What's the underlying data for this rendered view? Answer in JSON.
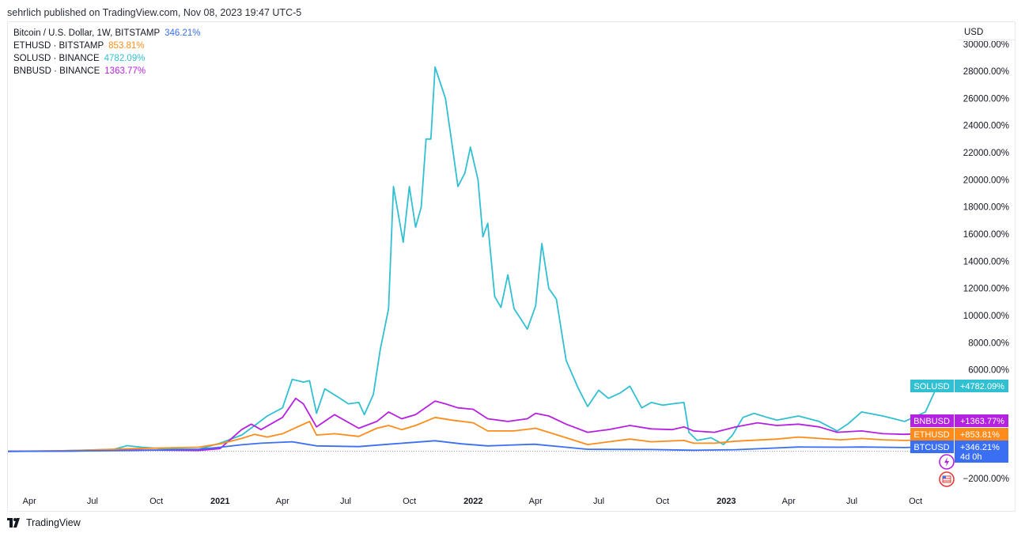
{
  "header": {
    "text": "sehrlich published on TradingView.com, Nov 08, 2023 19:47 UTC-5"
  },
  "footer": {
    "logo_text": "TradingView"
  },
  "usd_label": "USD",
  "colors": {
    "BTCUSD": "#3a6ff3",
    "ETHUSD": "#ff8c1a",
    "SOLUSD": "#31c0d1",
    "BNBUSD": "#b521e0"
  },
  "legend": [
    {
      "label": "Bitcoin / U.S. Dollar, 1W, BITSTAMP",
      "pct": "346.21%",
      "color": "#3a6ff3"
    },
    {
      "label": "ETHUSD · BITSTAMP",
      "pct": "853.81%",
      "color": "#ff8c1a"
    },
    {
      "label": "SOLUSD · BINANCE",
      "pct": "4782.09%",
      "color": "#31c0d1"
    },
    {
      "label": "BNBUSD · BINANCE",
      "pct": "1363.77%",
      "color": "#b521e0"
    }
  ],
  "chart_data": {
    "type": "line",
    "title": "",
    "y_unit": "%",
    "ylim": [
      -2600,
      29000
    ],
    "xlim": [
      "2020-03-01",
      "2023-11-08"
    ],
    "y_ticks": [
      {
        "value": 28000,
        "label": "28000.00%"
      },
      {
        "value": 26000,
        "label": "26000.00%"
      },
      {
        "value": 24000,
        "label": "24000.00%"
      },
      {
        "value": 22000,
        "label": "22000.00%"
      },
      {
        "value": 20000,
        "label": "20000.00%"
      },
      {
        "value": 18000,
        "label": "18000.00%"
      },
      {
        "value": 16000,
        "label": "16000.00%"
      },
      {
        "value": 14000,
        "label": "14000.00%"
      },
      {
        "value": 12000,
        "label": "12000.00%"
      },
      {
        "value": 10000,
        "label": "10000.00%"
      },
      {
        "value": 8000,
        "label": "8000.00%"
      },
      {
        "value": 6000,
        "label": "6000.00%"
      },
      {
        "value": -2000,
        "label": "−2000.00%"
      }
    ],
    "y_partial_top_label": "30000.00%",
    "x_ticks": [
      {
        "date": "2020-04-01",
        "label": "Apr",
        "year": false
      },
      {
        "date": "2020-07-01",
        "label": "Jul",
        "year": false
      },
      {
        "date": "2020-10-01",
        "label": "Oct",
        "year": false
      },
      {
        "date": "2021-01-01",
        "label": "2021",
        "year": true
      },
      {
        "date": "2021-04-01",
        "label": "Apr",
        "year": false
      },
      {
        "date": "2021-07-01",
        "label": "Jul",
        "year": false
      },
      {
        "date": "2021-10-01",
        "label": "Oct",
        "year": false
      },
      {
        "date": "2022-01-01",
        "label": "2022",
        "year": true
      },
      {
        "date": "2022-04-01",
        "label": "Apr",
        "year": false
      },
      {
        "date": "2022-07-01",
        "label": "Jul",
        "year": false
      },
      {
        "date": "2022-10-01",
        "label": "Oct",
        "year": false
      },
      {
        "date": "2023-01-01",
        "label": "2023",
        "year": true
      },
      {
        "date": "2023-04-01",
        "label": "Apr",
        "year": false
      },
      {
        "date": "2023-07-01",
        "label": "Jul",
        "year": false
      },
      {
        "date": "2023-10-01",
        "label": "Oct",
        "year": false
      }
    ],
    "series": [
      {
        "name": "SOLUSD",
        "color": "#31c0d1",
        "points": [
          [
            "2020-03-01",
            0
          ],
          [
            "2020-05-01",
            20
          ],
          [
            "2020-06-15",
            80
          ],
          [
            "2020-08-01",
            150
          ],
          [
            "2020-08-20",
            420
          ],
          [
            "2020-09-10",
            300
          ],
          [
            "2020-10-15",
            180
          ],
          [
            "2020-12-01",
            150
          ],
          [
            "2021-01-01",
            600
          ],
          [
            "2021-02-01",
            1200
          ],
          [
            "2021-02-20",
            1900
          ],
          [
            "2021-03-10",
            2600
          ],
          [
            "2021-04-01",
            3200
          ],
          [
            "2021-04-15",
            5300
          ],
          [
            "2021-05-01",
            5100
          ],
          [
            "2021-05-10",
            5200
          ],
          [
            "2021-05-20",
            2800
          ],
          [
            "2021-06-01",
            4600
          ],
          [
            "2021-06-20",
            4000
          ],
          [
            "2021-07-05",
            3500
          ],
          [
            "2021-07-20",
            3600
          ],
          [
            "2021-07-28",
            2700
          ],
          [
            "2021-08-10",
            4200
          ],
          [
            "2021-08-20",
            7500
          ],
          [
            "2021-09-01",
            10500
          ],
          [
            "2021-09-08",
            19500
          ],
          [
            "2021-09-22",
            15400
          ],
          [
            "2021-10-01",
            19500
          ],
          [
            "2021-10-10",
            16500
          ],
          [
            "2021-10-18",
            18000
          ],
          [
            "2021-10-25",
            23000
          ],
          [
            "2021-11-01",
            23000
          ],
          [
            "2021-11-07",
            28300
          ],
          [
            "2021-11-22",
            26000
          ],
          [
            "2021-12-01",
            22800
          ],
          [
            "2021-12-10",
            19500
          ],
          [
            "2021-12-20",
            20500
          ],
          [
            "2021-12-28",
            22400
          ],
          [
            "2022-01-08",
            20000
          ],
          [
            "2022-01-15",
            15800
          ],
          [
            "2022-01-22",
            16800
          ],
          [
            "2022-02-01",
            11400
          ],
          [
            "2022-02-10",
            10600
          ],
          [
            "2022-02-20",
            13000
          ],
          [
            "2022-03-01",
            10500
          ],
          [
            "2022-03-10",
            9800
          ],
          [
            "2022-03-20",
            9000
          ],
          [
            "2022-04-01",
            10700
          ],
          [
            "2022-04-10",
            15300
          ],
          [
            "2022-04-20",
            12000
          ],
          [
            "2022-05-01",
            11200
          ],
          [
            "2022-05-15",
            6700
          ],
          [
            "2022-06-01",
            4700
          ],
          [
            "2022-06-15",
            3300
          ],
          [
            "2022-07-01",
            4500
          ],
          [
            "2022-07-15",
            3900
          ],
          [
            "2022-08-01",
            4300
          ],
          [
            "2022-08-15",
            4800
          ],
          [
            "2022-09-01",
            3200
          ],
          [
            "2022-09-15",
            3600
          ],
          [
            "2022-10-01",
            3400
          ],
          [
            "2022-10-15",
            3500
          ],
          [
            "2022-11-01",
            3600
          ],
          [
            "2022-11-08",
            1400
          ],
          [
            "2022-11-20",
            800
          ],
          [
            "2022-12-10",
            1000
          ],
          [
            "2022-12-28",
            500
          ],
          [
            "2023-01-10",
            1200
          ],
          [
            "2023-01-25",
            2500
          ],
          [
            "2023-02-10",
            2800
          ],
          [
            "2023-03-01",
            2500
          ],
          [
            "2023-03-15",
            2300
          ],
          [
            "2023-04-15",
            2600
          ],
          [
            "2023-05-15",
            2200
          ],
          [
            "2023-06-10",
            1500
          ],
          [
            "2023-06-25",
            2000
          ],
          [
            "2023-07-15",
            2900
          ],
          [
            "2023-08-15",
            2600
          ],
          [
            "2023-09-15",
            2200
          ],
          [
            "2023-10-15",
            2900
          ],
          [
            "2023-11-01",
            4782.09
          ]
        ]
      },
      {
        "name": "BNBUSD",
        "color": "#b521e0",
        "points": [
          [
            "2020-03-01",
            0
          ],
          [
            "2020-06-01",
            20
          ],
          [
            "2020-09-01",
            100
          ],
          [
            "2020-12-01",
            60
          ],
          [
            "2021-01-01",
            200
          ],
          [
            "2021-02-01",
            1600
          ],
          [
            "2021-02-15",
            2000
          ],
          [
            "2021-03-01",
            1600
          ],
          [
            "2021-04-01",
            2500
          ],
          [
            "2021-04-20",
            3900
          ],
          [
            "2021-05-01",
            3500
          ],
          [
            "2021-05-20",
            1800
          ],
          [
            "2021-06-15",
            2700
          ],
          [
            "2021-07-20",
            1700
          ],
          [
            "2021-08-15",
            2200
          ],
          [
            "2021-09-01",
            2900
          ],
          [
            "2021-09-20",
            2400
          ],
          [
            "2021-10-10",
            2700
          ],
          [
            "2021-11-07",
            3700
          ],
          [
            "2021-11-22",
            3500
          ],
          [
            "2021-12-10",
            3200
          ],
          [
            "2022-01-01",
            3100
          ],
          [
            "2022-01-22",
            2400
          ],
          [
            "2022-02-20",
            2200
          ],
          [
            "2022-03-20",
            2400
          ],
          [
            "2022-04-01",
            2800
          ],
          [
            "2022-04-20",
            2600
          ],
          [
            "2022-05-15",
            2000
          ],
          [
            "2022-06-15",
            1400
          ],
          [
            "2022-07-15",
            1600
          ],
          [
            "2022-08-15",
            1900
          ],
          [
            "2022-09-15",
            1650
          ],
          [
            "2022-10-15",
            1600
          ],
          [
            "2022-11-01",
            1800
          ],
          [
            "2022-11-15",
            1500
          ],
          [
            "2022-12-15",
            1400
          ],
          [
            "2023-01-15",
            1800
          ],
          [
            "2023-02-15",
            2100
          ],
          [
            "2023-03-15",
            1900
          ],
          [
            "2023-04-15",
            2000
          ],
          [
            "2023-05-15",
            1800
          ],
          [
            "2023-06-10",
            1400
          ],
          [
            "2023-07-15",
            1500
          ],
          [
            "2023-08-15",
            1300
          ],
          [
            "2023-09-15",
            1250
          ],
          [
            "2023-11-01",
            1363.77
          ]
        ]
      },
      {
        "name": "ETHUSD",
        "color": "#ff8c1a",
        "points": [
          [
            "2020-03-01",
            0
          ],
          [
            "2020-06-01",
            50
          ],
          [
            "2020-09-01",
            200
          ],
          [
            "2020-12-01",
            300
          ],
          [
            "2021-01-01",
            550
          ],
          [
            "2021-02-01",
            950
          ],
          [
            "2021-02-20",
            1250
          ],
          [
            "2021-03-10",
            1050
          ],
          [
            "2021-04-01",
            1300
          ],
          [
            "2021-05-10",
            2200
          ],
          [
            "2021-05-20",
            1200
          ],
          [
            "2021-06-15",
            1300
          ],
          [
            "2021-07-20",
            1100
          ],
          [
            "2021-08-15",
            1700
          ],
          [
            "2021-09-01",
            1900
          ],
          [
            "2021-09-20",
            1600
          ],
          [
            "2021-10-10",
            1900
          ],
          [
            "2021-11-07",
            2500
          ],
          [
            "2021-12-01",
            2300
          ],
          [
            "2022-01-01",
            2100
          ],
          [
            "2022-01-22",
            1500
          ],
          [
            "2022-03-01",
            1500
          ],
          [
            "2022-04-01",
            1700
          ],
          [
            "2022-05-15",
            1000
          ],
          [
            "2022-06-15",
            500
          ],
          [
            "2022-08-15",
            900
          ],
          [
            "2022-09-15",
            700
          ],
          [
            "2022-11-01",
            800
          ],
          [
            "2022-11-15",
            600
          ],
          [
            "2022-12-15",
            600
          ],
          [
            "2023-01-15",
            750
          ],
          [
            "2023-03-15",
            900
          ],
          [
            "2023-04-15",
            1050
          ],
          [
            "2023-05-15",
            950
          ],
          [
            "2023-06-15",
            850
          ],
          [
            "2023-07-15",
            950
          ],
          [
            "2023-08-15",
            850
          ],
          [
            "2023-09-15",
            800
          ],
          [
            "2023-11-01",
            853.81
          ]
        ]
      },
      {
        "name": "BTCUSD",
        "color": "#3a6ff3",
        "points": [
          [
            "2020-03-01",
            0
          ],
          [
            "2020-06-01",
            20
          ],
          [
            "2020-09-01",
            60
          ],
          [
            "2020-12-01",
            150
          ],
          [
            "2021-01-01",
            300
          ],
          [
            "2021-02-01",
            480
          ],
          [
            "2021-03-01",
            600
          ],
          [
            "2021-04-15",
            700
          ],
          [
            "2021-05-20",
            400
          ],
          [
            "2021-07-20",
            350
          ],
          [
            "2021-09-01",
            520
          ],
          [
            "2021-11-07",
            780
          ],
          [
            "2021-12-15",
            550
          ],
          [
            "2022-01-22",
            400
          ],
          [
            "2022-03-30",
            520
          ],
          [
            "2022-05-15",
            300
          ],
          [
            "2022-06-15",
            150
          ],
          [
            "2022-09-15",
            130
          ],
          [
            "2022-11-15",
            80
          ],
          [
            "2023-01-15",
            120
          ],
          [
            "2023-03-15",
            250
          ],
          [
            "2023-04-15",
            320
          ],
          [
            "2023-06-15",
            300
          ],
          [
            "2023-07-15",
            320
          ],
          [
            "2023-09-15",
            280
          ],
          [
            "2023-11-01",
            346.21
          ]
        ]
      }
    ],
    "price_badges": [
      {
        "name": "SOLUSD",
        "value": "+4782.09%",
        "y": 4782.09,
        "color": "#31c0d1"
      },
      {
        "name": "BNBUSD",
        "value": "+1363.77%",
        "y": 1363.77,
        "color": "#b521e0"
      },
      {
        "name": "ETHUSD",
        "value": "+853.81%",
        "y": 853.81,
        "color": "#ff8c1a"
      },
      {
        "name": "BTCUSD",
        "value": "+346.21%",
        "y": 346.21,
        "color": "#3a6ff3",
        "sub": "4d 0h"
      }
    ]
  }
}
